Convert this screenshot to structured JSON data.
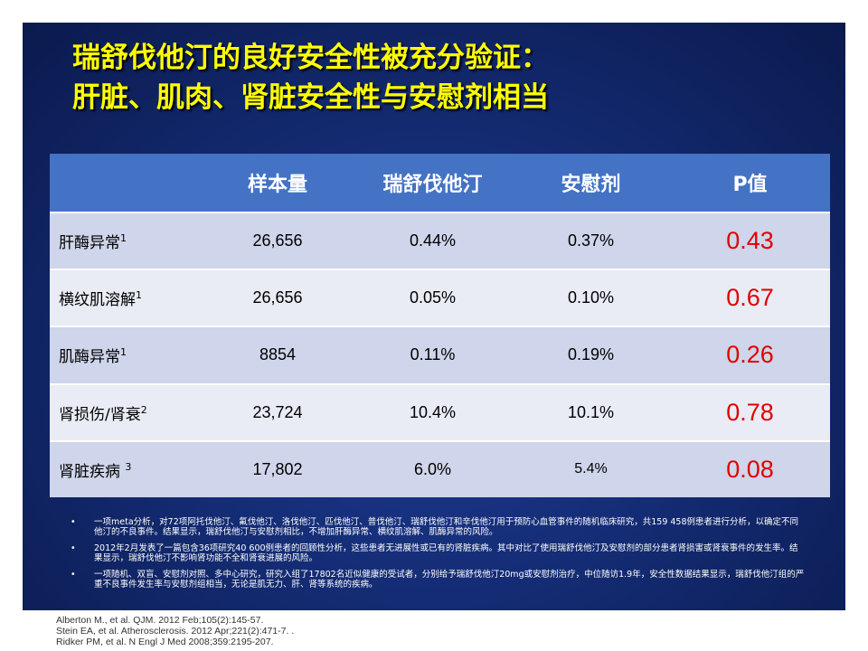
{
  "title": {
    "line1": "瑞舒伐他汀的良好安全性被充分验证：",
    "line2": "肝脏、肌肉、肾脏安全性与安慰剂相当"
  },
  "table": {
    "headers": [
      "",
      "样本量",
      "瑞舒伐他汀",
      "安慰剂",
      "P值"
    ],
    "rows": [
      {
        "label": "肝酶异常",
        "sup": "1",
        "n": "26,656",
        "rosuva": "0.44%",
        "placebo": "0.37%",
        "p": "0.43"
      },
      {
        "label": "横纹肌溶解",
        "sup": "1",
        "n": "26,656",
        "rosuva": "0.05%",
        "placebo": "0.10%",
        "p": "0.67"
      },
      {
        "label": "肌酶异常",
        "sup": "1",
        "n": "8854",
        "rosuva": "0.11%",
        "placebo": "0.19%",
        "p": "0.26"
      },
      {
        "label": "肾损伤/肾衰",
        "sup": "2",
        "n": "23,724",
        "rosuva": "10.4%",
        "placebo": "10.1%",
        "p": "0.78"
      },
      {
        "label": "肾脏疾病 ",
        "sup": "3",
        "n": "17,802",
        "rosuva": "6.0%",
        "placebo": "5.4%",
        "p": "0.08"
      }
    ]
  },
  "notes": {
    "bullet": "•",
    "items": [
      "一项meta分析，对72项阿托伐他汀、氟伐他汀、洛伐他汀、匹伐他汀、普伐他汀、瑞舒伐他汀和辛伐他汀用于预防心血管事件的随机临床研究，共159 458例患者进行分析，以确定不同他汀的不良事件。结果显示，瑞舒伐他汀与安慰剂相比，不增加肝酶异常、横纹肌溶解、肌酶异常的风险。",
      "2012年2月发表了一篇包含36项研究40 600例患者的回顾性分析，这些患者无进展性或已有的肾脏疾病。其中对比了使用瑞舒伐他汀及安慰剂的部分患者肾损害或肾衰事件的发生率。结果显示，瑞舒伐他汀不影响肾功能不全和肾衰进展的风险。",
      "一项随机、双盲、安慰剂对照、多中心研究，研究入组了17802名近似健康的受试者，分别给予瑞舒伐他汀20mg或安慰剂治疗，中位随访1.9年，安全性数据结果显示，瑞舒伐他汀组的严重不良事件发生率与安慰剂组相当，无论是肌无力、肝、肾等系统的疾病。"
    ]
  },
  "references": [
    "Alberton M., et al. QJM. 2012 Feb;105(2):145-57.",
    "Stein EA, et al. Atherosclerosis. 2012 Apr;221(2):471-7. .",
    "Ridker PM, et al. N Engl J Med 2008;359:2195-207."
  ]
}
